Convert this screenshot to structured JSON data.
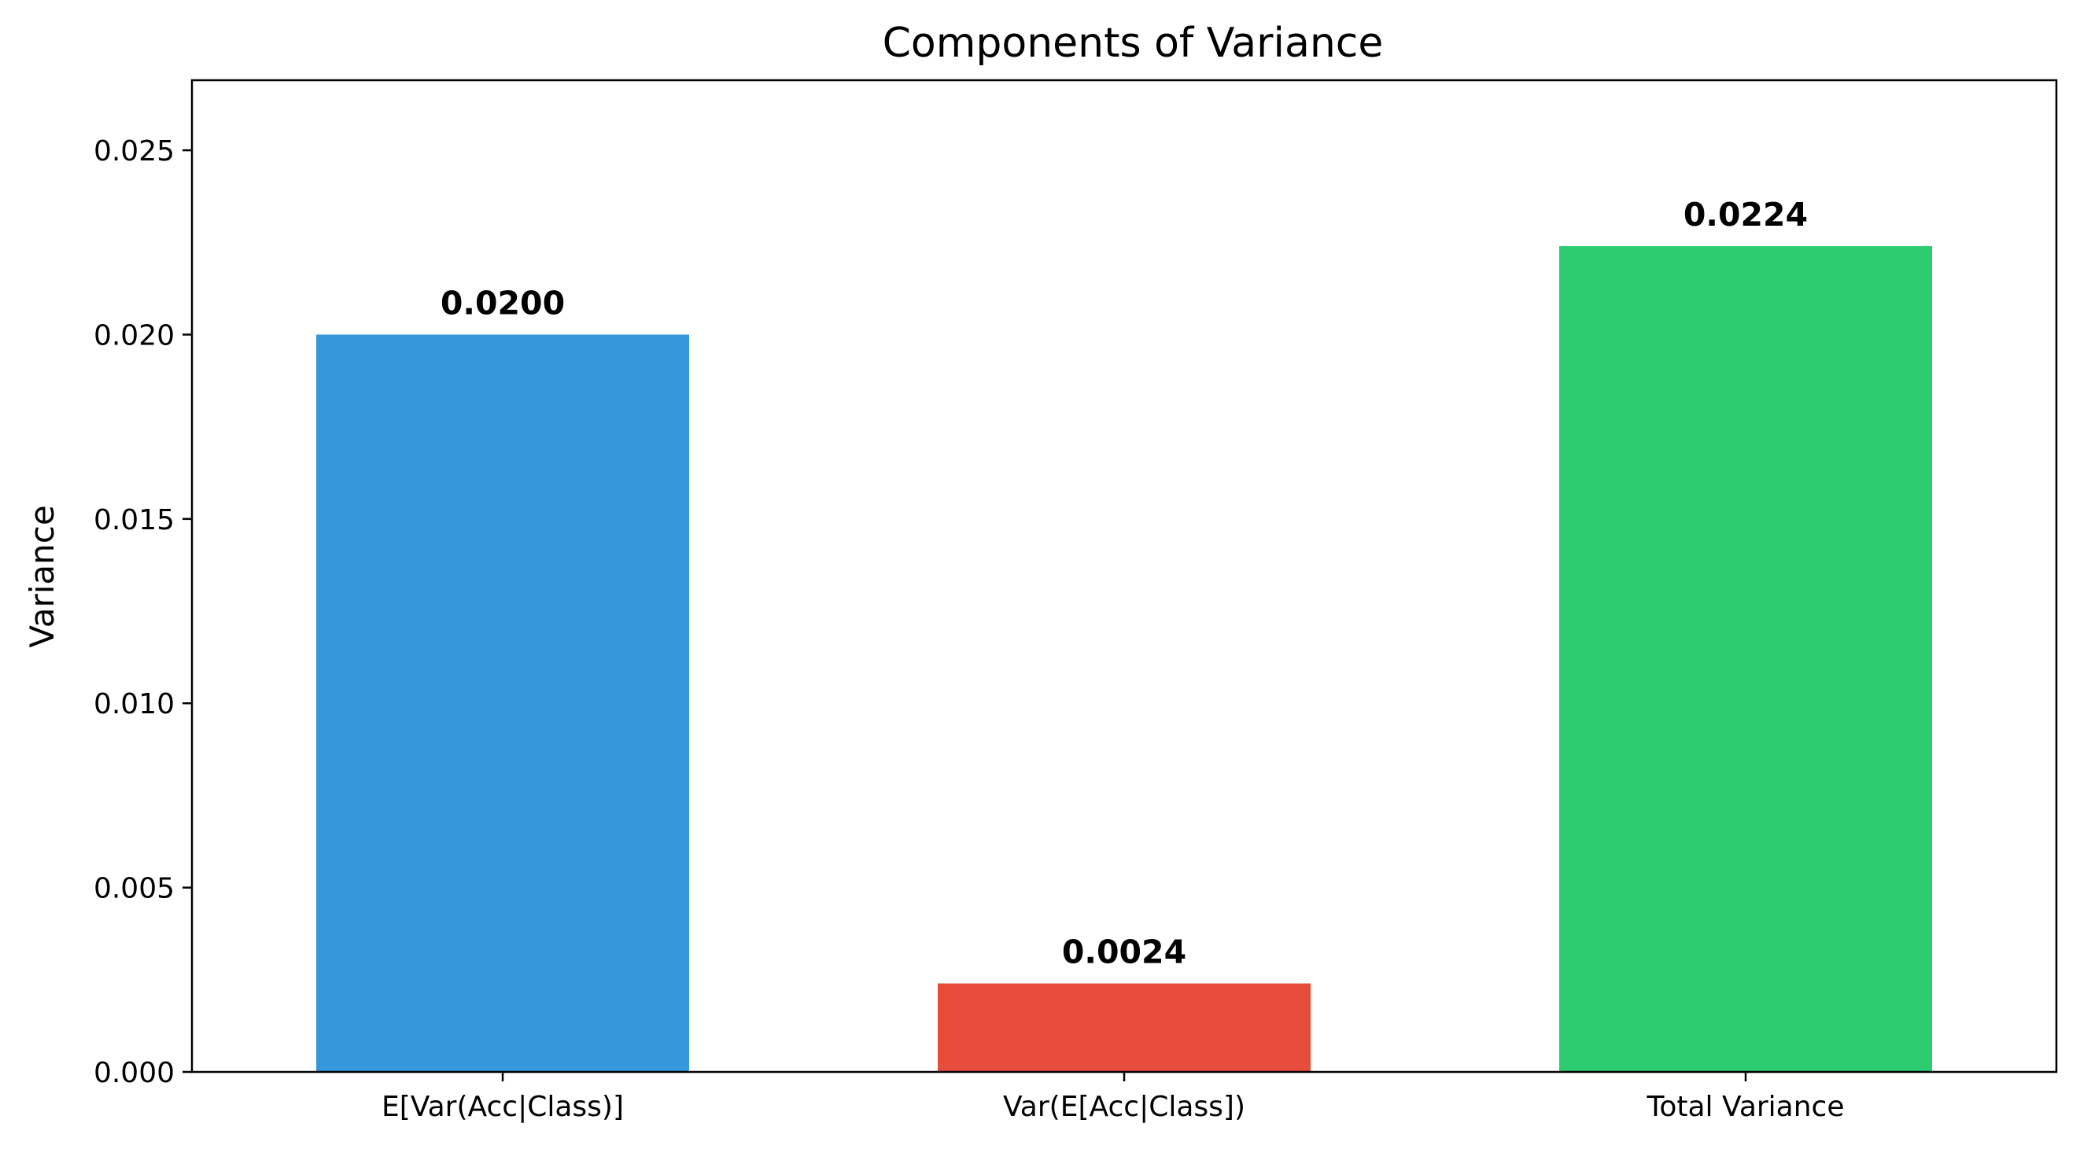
{
  "chart_data": {
    "type": "bar",
    "title": "Components of Variance",
    "xlabel": "",
    "ylabel": "Variance",
    "categories": [
      "E[Var(Acc|Class)]",
      "Var(E[Acc|Class])",
      "Total Variance"
    ],
    "values": [
      0.02,
      0.0024,
      0.0224
    ],
    "data_labels": [
      "0.0200",
      "0.0024",
      "0.0224"
    ],
    "colors": [
      "#3698db",
      "#e74c3c",
      "#2ecc71"
    ],
    "ylim": [
      0,
      0.0269
    ],
    "yticks": [
      0.0,
      0.005,
      0.01,
      0.015,
      0.02,
      0.025
    ],
    "ytick_labels": [
      "0.000",
      "0.005",
      "0.010",
      "0.015",
      "0.020",
      "0.025"
    ],
    "grid": false,
    "legend": false
  }
}
